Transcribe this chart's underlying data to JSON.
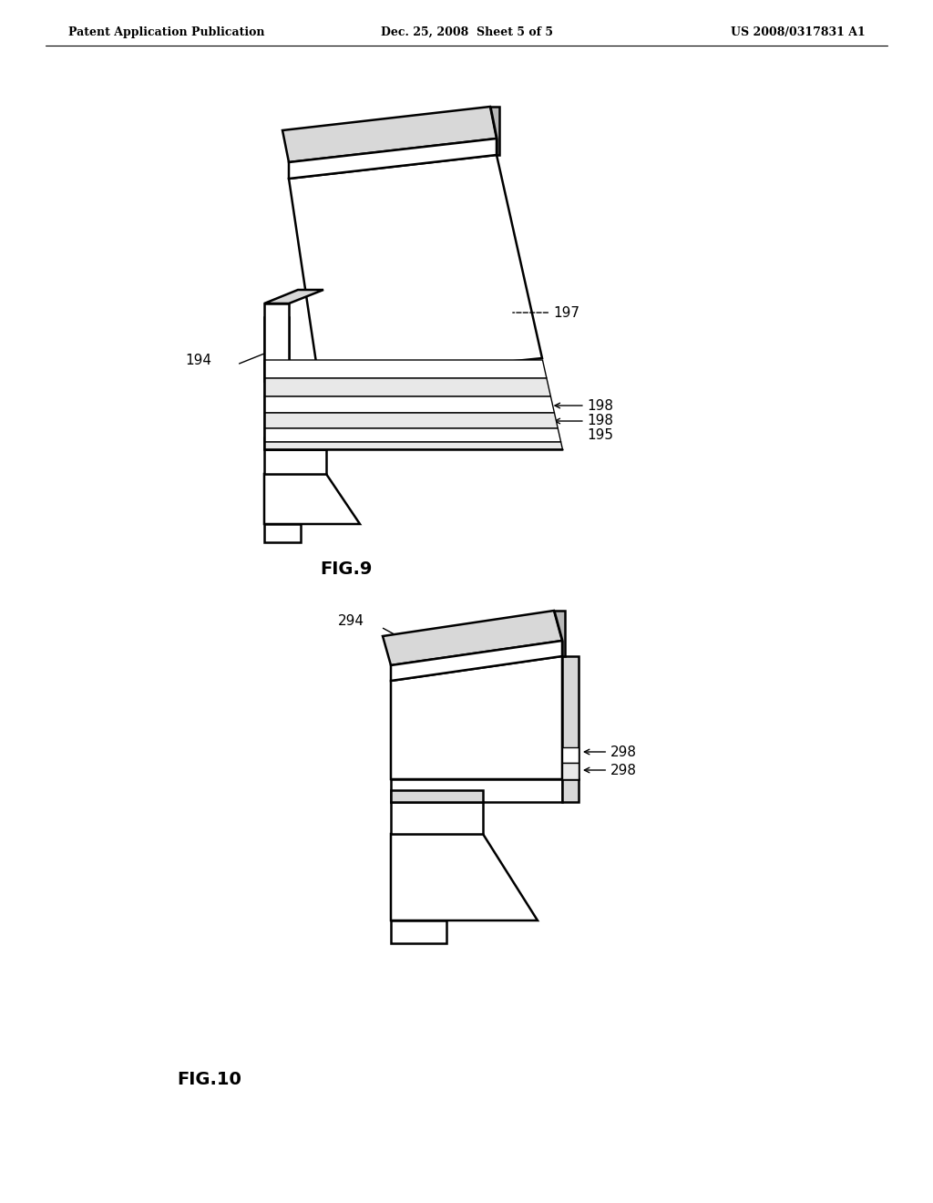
{
  "bg_color": "#ffffff",
  "line_color": "#000000",
  "fig_width": 10.24,
  "fig_height": 13.2,
  "header_left": "Patent Application Publication",
  "header_center": "Dec. 25, 2008  Sheet 5 of 5",
  "header_right": "US 2008/0317831 A1",
  "fig9_label": "FIG.9",
  "fig10_label": "FIG.10",
  "label_194": "194",
  "label_195": "195",
  "label_197": "197",
  "label_198a": "198",
  "label_198b": "198",
  "label_294": "294",
  "label_298a": "298",
  "label_298b": "298",
  "lw_main": 1.8,
  "lw_thin": 1.0,
  "gray_top": "#d8d8d8",
  "gray_side": "#b8b8b8",
  "white": "#ffffff",
  "gray_hatch": "#888888"
}
